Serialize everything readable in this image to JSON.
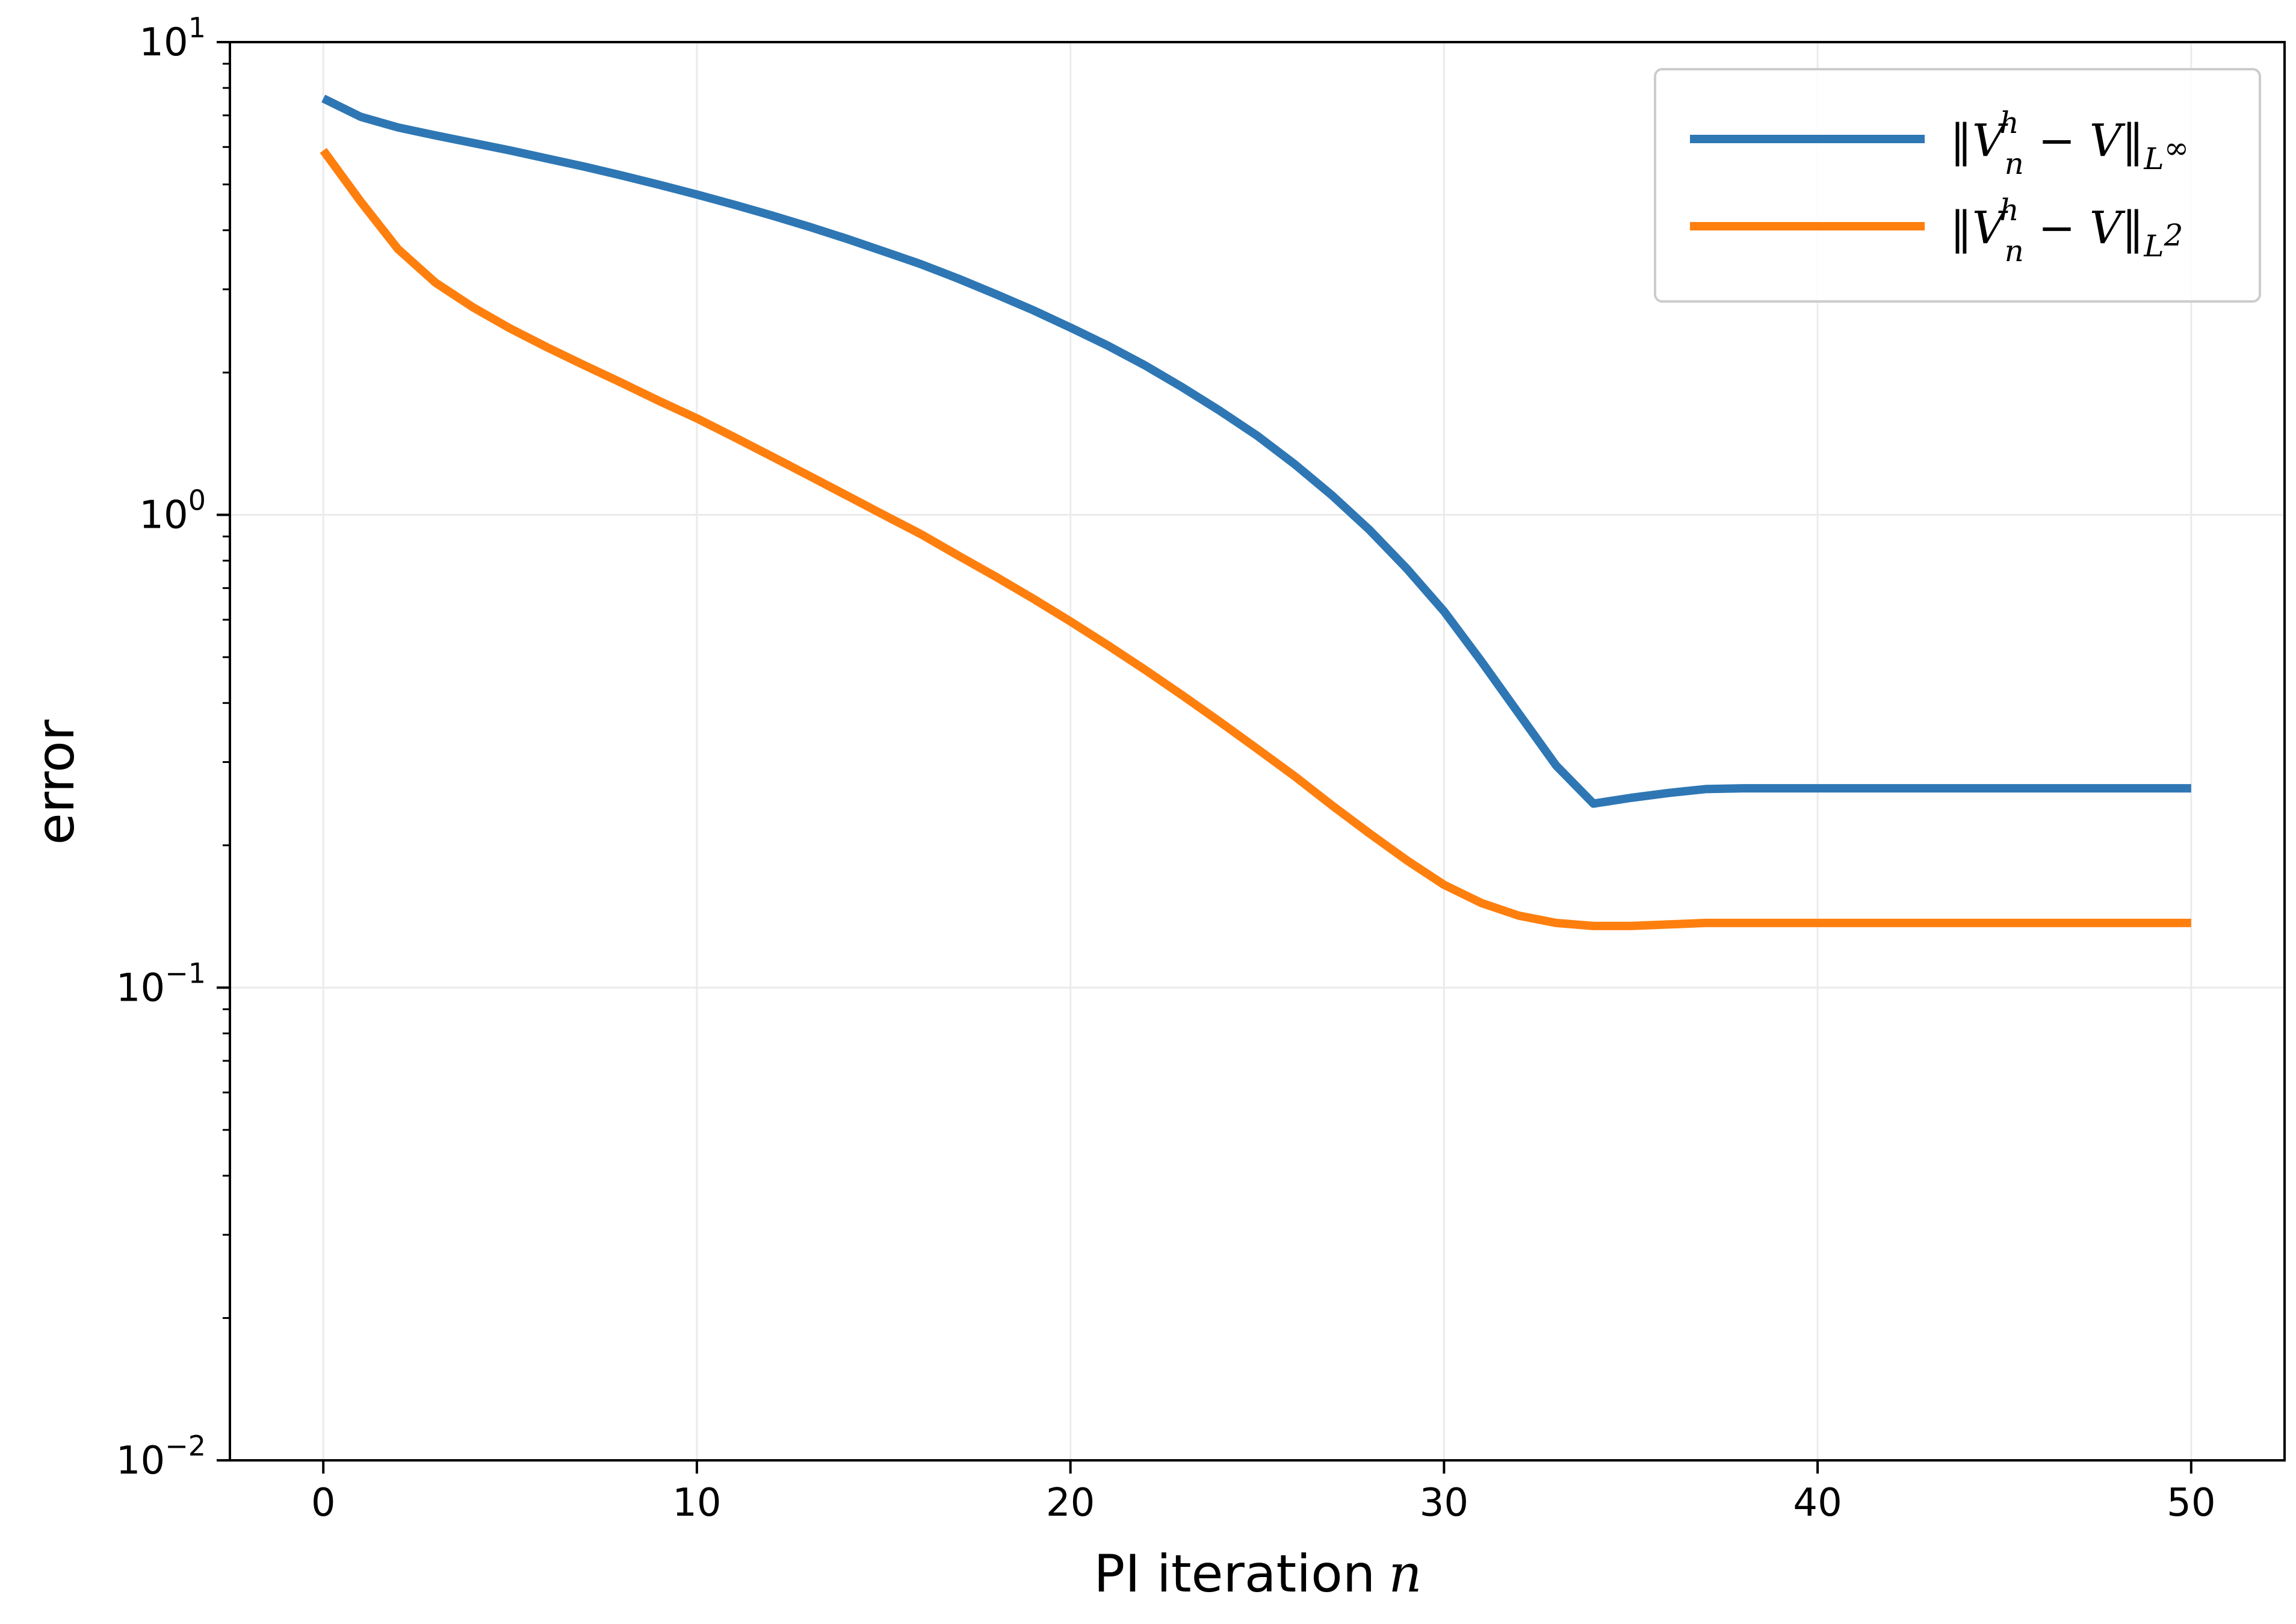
{
  "chart_data": {
    "type": "line",
    "title": "",
    "xlabel": "PI iteration",
    "xlabel_var": "n",
    "ylabel": "error",
    "yscale": "log",
    "xlim": [
      -2.5,
      52.5
    ],
    "ylim": [
      0.01,
      10
    ],
    "grid": true,
    "legend_position": "top-right",
    "x_ticks": [
      0,
      10,
      20,
      30,
      40,
      50
    ],
    "x_tick_labels": [
      "0",
      "10",
      "20",
      "30",
      "40",
      "50"
    ],
    "y_ticks": [
      {
        "value": 10,
        "base": "10",
        "exp": "1"
      },
      {
        "value": 1,
        "base": "10",
        "exp": "0"
      },
      {
        "value": 0.1,
        "base": "10",
        "exp": "−1"
      },
      {
        "value": 0.01,
        "base": "10",
        "exp": "−2"
      }
    ],
    "x": [
      0,
      1,
      2,
      3,
      4,
      5,
      6,
      7,
      8,
      9,
      10,
      11,
      12,
      13,
      14,
      15,
      16,
      17,
      18,
      19,
      20,
      21,
      22,
      23,
      24,
      25,
      26,
      27,
      28,
      29,
      30,
      31,
      32,
      33,
      34,
      35,
      36,
      37,
      38,
      39,
      40,
      41,
      42,
      43,
      44,
      45,
      46,
      47,
      48,
      49,
      50
    ],
    "series": [
      {
        "name": "‖Vₙʰ − V‖ L∞",
        "legend": {
          "norm_open": "‖",
          "V": "V",
          "sub": "n",
          "sup": "h",
          "minus": " − ",
          "V2": "V",
          "norm_close": "‖",
          "space": "L",
          "space_exp": "∞"
        },
        "color": "#2e77b4",
        "values": [
          7.6,
          6.95,
          6.6,
          6.35,
          6.12,
          5.9,
          5.67,
          5.45,
          5.22,
          4.99,
          4.76,
          4.53,
          4.3,
          4.07,
          3.84,
          3.61,
          3.39,
          3.16,
          2.93,
          2.71,
          2.49,
          2.28,
          2.07,
          1.86,
          1.66,
          1.47,
          1.28,
          1.1,
          0.93,
          0.77,
          0.625,
          0.49,
          0.38,
          0.295,
          0.245,
          0.252,
          0.258,
          0.263,
          0.264,
          0.264,
          0.264,
          0.264,
          0.264,
          0.264,
          0.264,
          0.264,
          0.264,
          0.264,
          0.264,
          0.264,
          0.264
        ]
      },
      {
        "name": "‖Vₙʰ − V‖ L²",
        "legend": {
          "norm_open": "‖",
          "V": "V",
          "sub": "n",
          "sup": "h",
          "minus": " − ",
          "V2": "V",
          "norm_close": "‖",
          "space": "L",
          "space_exp": "2"
        },
        "color": "#fe7f0e",
        "values": [
          5.9,
          4.6,
          3.65,
          3.1,
          2.75,
          2.48,
          2.26,
          2.07,
          1.9,
          1.74,
          1.6,
          1.46,
          1.33,
          1.21,
          1.1,
          1.0,
          0.91,
          0.82,
          0.74,
          0.665,
          0.595,
          0.53,
          0.47,
          0.415,
          0.365,
          0.32,
          0.28,
          0.243,
          0.212,
          0.186,
          0.165,
          0.151,
          0.142,
          0.137,
          0.135,
          0.135,
          0.136,
          0.137,
          0.137,
          0.137,
          0.137,
          0.137,
          0.137,
          0.137,
          0.137,
          0.137,
          0.137,
          0.137,
          0.137,
          0.137,
          0.137
        ]
      }
    ]
  }
}
